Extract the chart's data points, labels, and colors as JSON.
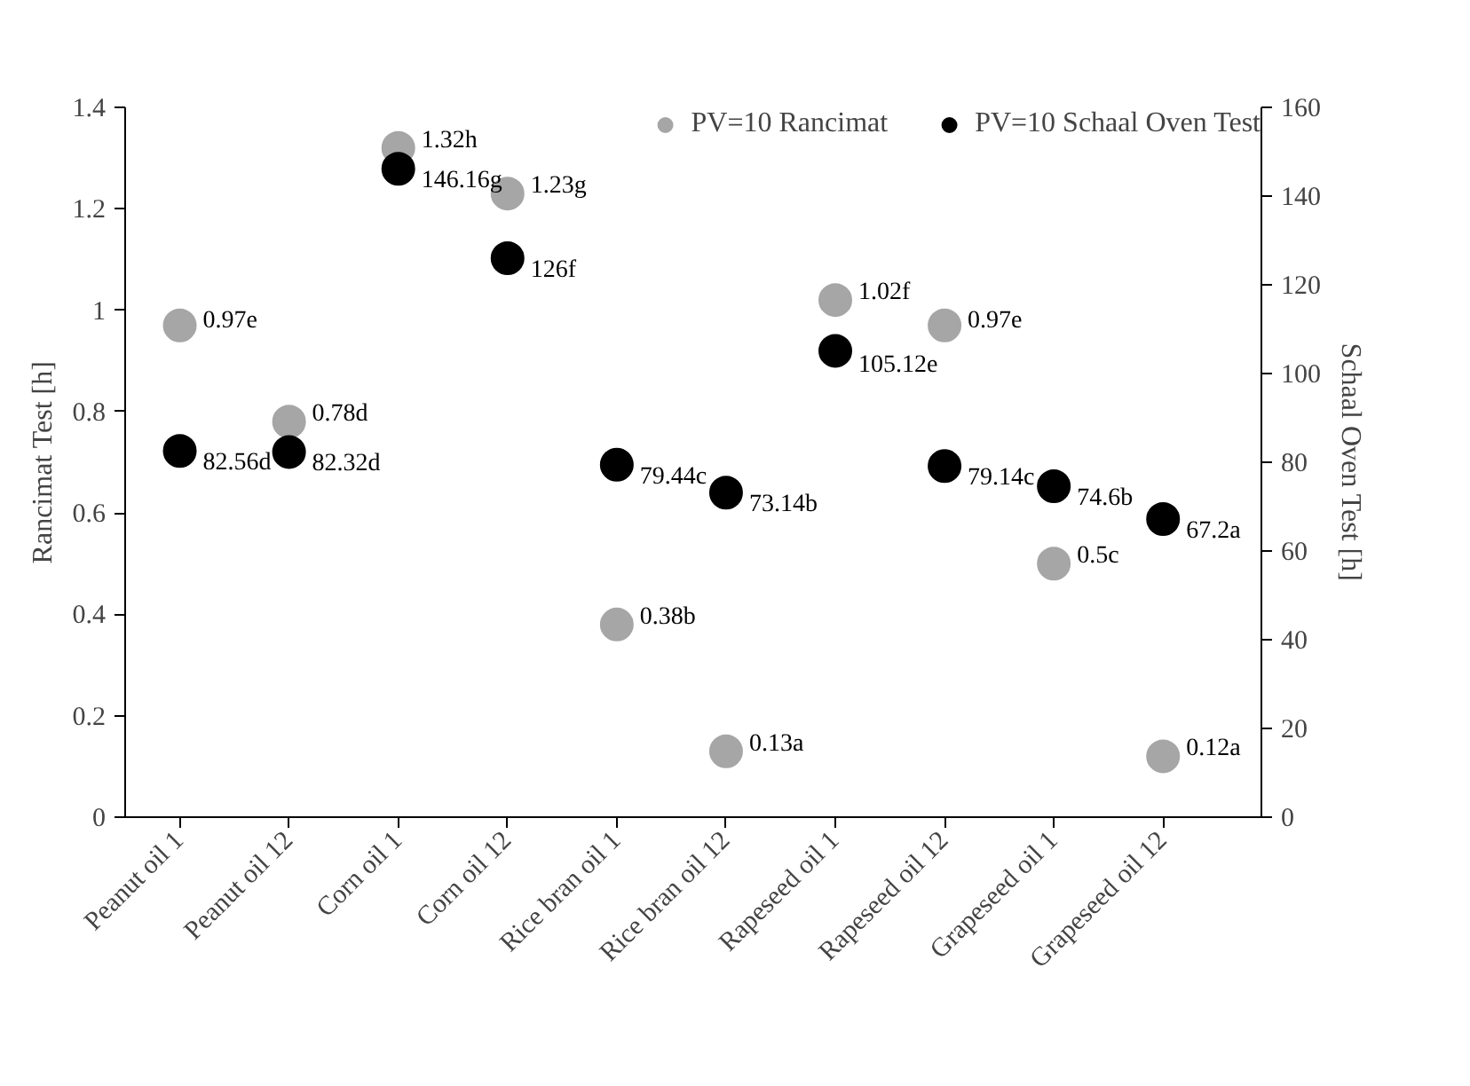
{
  "chart_data": {
    "type": "scatter",
    "categories": [
      "Peanut oil 1",
      "Peanut oil 12",
      "Corn oil 1",
      "Corn oil 12",
      "Rice bran oil 1",
      "Rice bran oil 12",
      "Rapeseed oil 1",
      "Rapeseed oil 12",
      "Grapeseed oil 1",
      "Grapeseed oil 12"
    ],
    "ylabel": "Rancimat Test [h]",
    "y2label": "Schaal Oven Test [h]",
    "ylim": [
      0,
      1.4
    ],
    "yticks": [
      0,
      0.2,
      0.4,
      0.6,
      0.8,
      1,
      1.2,
      1.4
    ],
    "y2lim": [
      0,
      160
    ],
    "y2ticks": [
      0,
      20,
      40,
      60,
      80,
      100,
      120,
      140,
      160
    ],
    "series": [
      {
        "name": "PV=10 Rancimat",
        "color": "#a6a6a6",
        "values": [
          0.97,
          0.78,
          1.32,
          1.23,
          0.38,
          0.13,
          1.02,
          0.97,
          0.5,
          0.12
        ],
        "value_labels": [
          "0.97e",
          "0.78d",
          "1.32h",
          "1.23g",
          "0.38b",
          "0.13a",
          "1.02f",
          "0.97e",
          "0.5c",
          "0.12a"
        ]
      },
      {
        "name": "PV=10 Schaal Oven Test",
        "color": "#000000",
        "axis": "y2",
        "values": [
          82.56,
          82.32,
          146.16,
          126,
          79.44,
          73.14,
          105.12,
          79.14,
          74.6,
          67.2
        ],
        "value_labels": [
          "82.56d",
          "82.32d",
          "146.16g",
          "126f",
          "79.44c",
          "73.14b",
          "105.12e",
          "79.14c",
          "74.6b",
          "67.2a"
        ]
      }
    ],
    "legend": "top right",
    "marker": "circle",
    "grid": false
  }
}
